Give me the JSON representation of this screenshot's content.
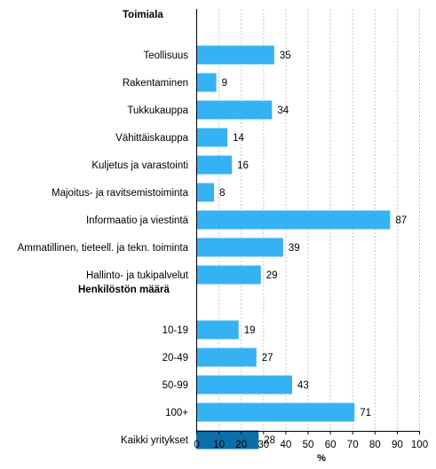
{
  "chart_data": {
    "type": "bar",
    "orientation": "horizontal",
    "xlabel": "%",
    "xlim": [
      0,
      100
    ],
    "xticks": [
      0,
      10,
      20,
      30,
      40,
      50,
      60,
      70,
      80,
      90,
      100
    ],
    "grid": "vertical dashed",
    "groups": [
      {
        "label": "Toimiala",
        "categories": [
          "Teollisuus",
          "Rakentaminen",
          "Tukkukauppa",
          "Vähittäiskauppa",
          "Kuljetus ja varastointi",
          "Majoitus- ja ravitsemistoiminta",
          "Informaatio ja viestintä",
          "Ammatillinen, tieteell. ja tekn. toiminta",
          "Hallinto- ja tukipalvelut"
        ],
        "values": [
          35,
          9,
          34,
          14,
          16,
          8,
          87,
          39,
          29
        ]
      },
      {
        "label": "Henkilöstön määrä",
        "categories": [
          "10-19",
          "20-49",
          "50-99",
          "100+"
        ],
        "values": [
          19,
          27,
          43,
          71
        ]
      },
      {
        "label": "",
        "categories": [
          "Kaikki yritykset"
        ],
        "values": [
          28
        ],
        "highlight": true
      }
    ],
    "colors": {
      "bar": "#35b2f4",
      "highlight_bar": "#0b6ea9",
      "grid": "#c8c8c8",
      "axis": "#000000"
    }
  }
}
